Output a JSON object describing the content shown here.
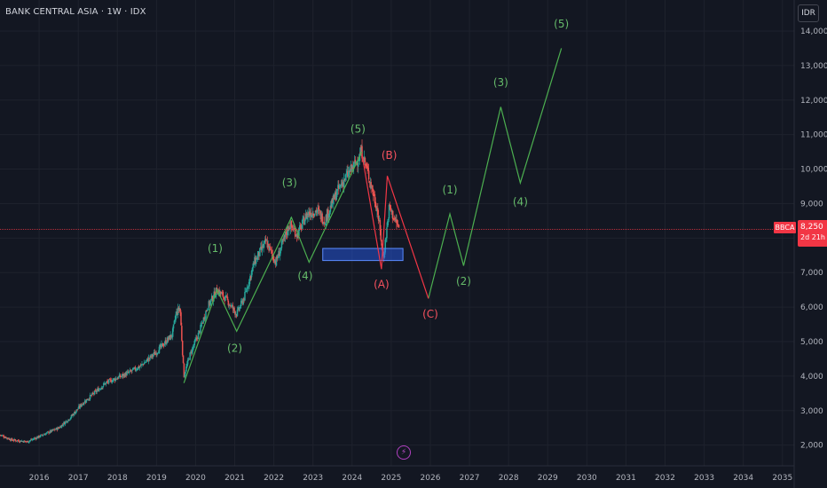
{
  "header": {
    "title": "BANK CENTRAL ASIA · 1W · IDX",
    "currency": "IDR"
  },
  "price_tag": {
    "symbol": "BBCA",
    "price": "8,250",
    "countdown": "2d 21h"
  },
  "colors": {
    "background": "#131722",
    "grid": "#1e222d",
    "up": "#26a69a",
    "down": "#ef5350",
    "wave_green": "#4caf50",
    "wave_red": "#f23645",
    "zone": "#2962ff",
    "price_line": "#f23645"
  },
  "chart_data": {
    "type": "candlestick",
    "x_axis": {
      "ticks": [
        "2016",
        "2017",
        "2018",
        "2019",
        "2020",
        "2021",
        "2022",
        "2023",
        "2024",
        "2025",
        "2026",
        "2027",
        "2028",
        "2029",
        "2030",
        "2031",
        "2032",
        "2033",
        "2034",
        "2035"
      ],
      "range": [
        2015.5,
        2036.0
      ]
    },
    "y_axis": {
      "ticks": [
        2000,
        3000,
        4000,
        5000,
        6000,
        7000,
        8000,
        9000,
        10000,
        11000,
        12000,
        13000,
        14000
      ],
      "tick_labels": [
        "2,000",
        "3,000",
        "4,000",
        "5,000",
        "6,000",
        "7,000",
        "8,000",
        "9,000",
        "10,000",
        "11,000",
        "12,000",
        "13,000",
        "14,000"
      ],
      "range": [
        1400,
        14900
      ]
    },
    "last_price": 8250,
    "price_path": [
      [
        2015.5,
        2300
      ],
      [
        2015.8,
        2150
      ],
      [
        2016.2,
        2100
      ],
      [
        2016.6,
        2300
      ],
      [
        2017.0,
        2500
      ],
      [
        2017.3,
        2800
      ],
      [
        2017.6,
        3200
      ],
      [
        2017.9,
        3500
      ],
      [
        2018.2,
        3800
      ],
      [
        2018.5,
        3950
      ],
      [
        2018.8,
        4100
      ],
      [
        2019.1,
        4300
      ],
      [
        2019.5,
        4700
      ],
      [
        2019.9,
        5200
      ],
      [
        2020.0,
        5800
      ],
      [
        2020.1,
        6000
      ],
      [
        2020.2,
        4000
      ],
      [
        2020.35,
        4600
      ],
      [
        2020.6,
        5300
      ],
      [
        2020.8,
        6000
      ],
      [
        2021.05,
        6500
      ],
      [
        2021.3,
        6200
      ],
      [
        2021.55,
        5800
      ],
      [
        2021.75,
        6300
      ],
      [
        2022.0,
        7300
      ],
      [
        2022.3,
        7900
      ],
      [
        2022.55,
        7300
      ],
      [
        2022.9,
        8400
      ],
      [
        2023.1,
        8100
      ],
      [
        2023.35,
        8700
      ],
      [
        2023.6,
        8800
      ],
      [
        2023.8,
        8500
      ],
      [
        2024.1,
        9300
      ],
      [
        2024.3,
        9700
      ],
      [
        2024.55,
        10100
      ],
      [
        2024.75,
        10500
      ],
      [
        2024.95,
        9700
      ],
      [
        2025.15,
        8800
      ],
      [
        2025.3,
        7400
      ],
      [
        2025.45,
        8900
      ],
      [
        2025.6,
        8500
      ],
      [
        2025.7,
        8300
      ]
    ],
    "projection_red": [
      [
        2024.75,
        10450
      ],
      [
        2025.25,
        7100
      ],
      [
        2025.4,
        9800
      ],
      [
        2026.45,
        6250
      ]
    ],
    "wave_green_primary": [
      [
        2020.2,
        3800
      ],
      [
        2021.05,
        6500
      ],
      [
        2021.55,
        5300
      ],
      [
        2022.95,
        8600
      ],
      [
        2023.4,
        7300
      ],
      [
        2024.75,
        10500
      ]
    ],
    "projection_green": [
      [
        2026.45,
        6250
      ],
      [
        2027.0,
        8700
      ],
      [
        2027.35,
        7200
      ],
      [
        2028.3,
        11800
      ],
      [
        2028.8,
        9600
      ],
      [
        2029.85,
        13500
      ]
    ],
    "wave_labels_primary": [
      {
        "text": "(1)",
        "x": 2021.0,
        "y": 7600,
        "color": "green"
      },
      {
        "text": "(2)",
        "x": 2021.5,
        "y": 4700,
        "color": "green"
      },
      {
        "text": "(3)",
        "x": 2022.9,
        "y": 9500,
        "color": "green"
      },
      {
        "text": "(4)",
        "x": 2023.3,
        "y": 6800,
        "color": "green"
      },
      {
        "text": "(5)",
        "x": 2024.65,
        "y": 11050,
        "color": "green"
      }
    ],
    "wave_labels_correction": [
      {
        "text": "(A)",
        "x": 2025.25,
        "y": 6550,
        "color": "red"
      },
      {
        "text": "(B)",
        "x": 2025.45,
        "y": 10300,
        "color": "red"
      },
      {
        "text": "(C)",
        "x": 2026.5,
        "y": 5700,
        "color": "red"
      }
    ],
    "wave_labels_projection": [
      {
        "text": "(1)",
        "x": 2027.0,
        "y": 9300,
        "color": "green"
      },
      {
        "text": "(2)",
        "x": 2027.35,
        "y": 6650,
        "color": "green"
      },
      {
        "text": "(3)",
        "x": 2028.3,
        "y": 12400,
        "color": "green"
      },
      {
        "text": "(4)",
        "x": 2028.8,
        "y": 8950,
        "color": "green"
      },
      {
        "text": "(5)",
        "x": 2029.85,
        "y": 14100,
        "color": "green"
      }
    ],
    "support_zone": {
      "x0": 2023.75,
      "x1": 2025.8,
      "y0": 7350,
      "y1": 7700
    }
  }
}
